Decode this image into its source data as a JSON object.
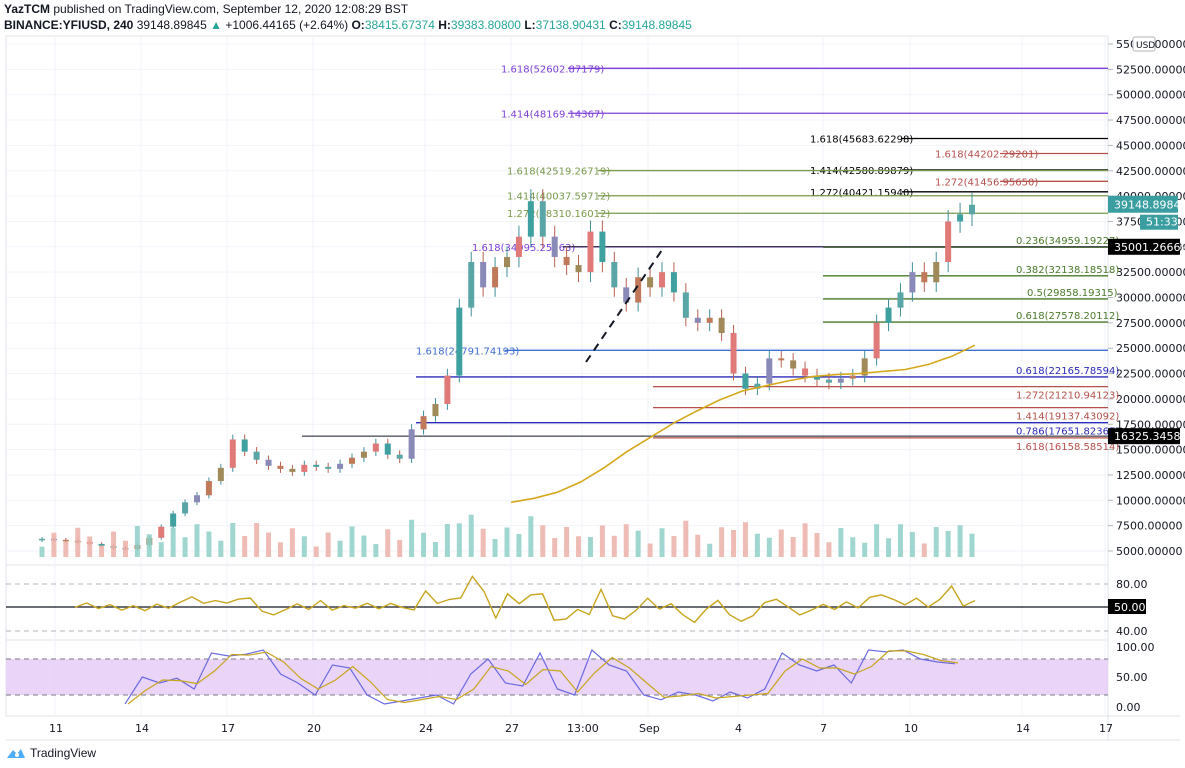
{
  "header": {
    "author": "YazTCM",
    "published": " published on TradingView.com, September 12, 2020 12:08:29 BST",
    "symbol": "BINANCE:YFIUSD, 240",
    "last": "39148.89845",
    "change": "+1006.44165 (+2.64%)",
    "o_label": "O:",
    "o": "38415.67374",
    "h_label": "H:",
    "h": "39383.80800",
    "l_label": "L:",
    "l": "37138.90431",
    "c_label": "C:",
    "c": "39148.89845"
  },
  "footer": {
    "brand": "TradingView"
  },
  "price_axis": {
    "currency": "USD",
    "ticks": [
      "55000.00000",
      "52500.00000",
      "50000.00000",
      "47500.00000",
      "45000.00000",
      "42500.00000",
      "40000.00000",
      "37500.00000",
      "35000.00000",
      "32500.00000",
      "30000.00000",
      "27500.00000",
      "25000.00000",
      "22500.00000",
      "20000.00000",
      "17500.00000",
      "15000.00000",
      "12500.00000",
      "10000.00000",
      "7500.00000",
      "5000.00000"
    ],
    "last_price_tag": "39148.89845",
    "countdown_tag": "51:33",
    "hline_tag_1": "35001.26669",
    "hline_tag_2": "16325.34585"
  },
  "rsi_axis": {
    "ticks": [
      "80.00",
      "40.00"
    ],
    "mid_tag": "50.00"
  },
  "stoch_axis": {
    "ticks": [
      "100.00",
      "50.00",
      "0.00"
    ]
  },
  "time_axis": {
    "ticks": [
      "11",
      "14",
      "17",
      "20",
      "24",
      "27",
      "13:00",
      "Sep",
      "4",
      "7",
      "10",
      "14",
      "17"
    ]
  },
  "chart_data": {
    "type": "candlestick",
    "title": "BINANCE:YFIUSD, 240",
    "ylabel": "USD",
    "ylim": [
      3500,
      56000
    ],
    "x_ticks": [
      "11",
      "14",
      "17",
      "20",
      "24",
      "27",
      "13:00",
      "Sep",
      "4",
      "7",
      "10",
      "14",
      "17"
    ],
    "fib_levels": [
      {
        "label": "1.618(52602.87179)",
        "value": 52602.87179,
        "color": "#7e3fd8"
      },
      {
        "label": "1.414(48169.14367)",
        "value": 48169.14367,
        "color": "#7e3fd8"
      },
      {
        "label": "1.618(45683.62298)",
        "value": 45683.62298,
        "color": "#000000"
      },
      {
        "label": "1.618(44202.29201)",
        "value": 44202.29201,
        "color": "#b5504a"
      },
      {
        "label": "1.414(42580.89879)",
        "value": 42580.89879,
        "color": "#000000"
      },
      {
        "label": "1.618(42519.26719)",
        "value": 42519.26719,
        "color": "#7a9a4a"
      },
      {
        "label": "1.272(41456.95650)",
        "value": 41456.9565,
        "color": "#b5504a"
      },
      {
        "label": "1.272(40421.15940)",
        "value": 40421.1594,
        "color": "#000000"
      },
      {
        "label": "1.414(40037.59712)",
        "value": 40037.59712,
        "color": "#7a9a4a"
      },
      {
        "label": "1.272(38310.16012)",
        "value": 38310.16012,
        "color": "#7a9a4a"
      },
      {
        "label": "1.618(34995.25163)",
        "value": 34995.25163,
        "color": "#7e3fd8"
      },
      {
        "label": "0.236(34959.19227)",
        "value": 34959.19227,
        "color": "#4a7a2a"
      },
      {
        "label": "0.382(32138.18518)",
        "value": 32138.18518,
        "color": "#4a7a2a"
      },
      {
        "label": "0.5(29858.19315)",
        "value": 29858.19315,
        "color": "#4a7a2a"
      },
      {
        "label": "0.618(27578.20112)",
        "value": 27578.20112,
        "color": "#4a7a2a"
      },
      {
        "label": "1.618(24791.74193)",
        "value": 24791.74193,
        "color": "#3d6fd0"
      },
      {
        "label": "0.618(22165.78594)",
        "value": 22165.78594,
        "color": "#2a2ab8"
      },
      {
        "label": "1.272(21210.94123)",
        "value": 21210.94123,
        "color": "#b5504a"
      },
      {
        "label": "1.414(19137.43092)",
        "value": 19137.43092,
        "color": "#b5504a"
      },
      {
        "label": "0.786(17651.82367)",
        "value": 17651.82367,
        "color": "#2a2ab8"
      },
      {
        "label": "1.618(16158.58514)",
        "value": 16158.58514,
        "color": "#b5504a"
      }
    ],
    "horizontal_lines": [
      35001.26669,
      16325.34585
    ],
    "close_series": [
      6200,
      6100,
      6000,
      5900,
      5700,
      5500,
      5300,
      5200,
      5600,
      6300,
      7400,
      8700,
      9800,
      10500,
      11900,
      13200,
      16000,
      14800,
      14000,
      13400,
      13100,
      12800,
      13500,
      13300,
      13100,
      13600,
      14200,
      14800,
      15600,
      14500,
      14100,
      17000,
      18300,
      19500,
      22300,
      29000,
      33500,
      31000,
      33000,
      34000,
      36000,
      39500,
      36000,
      34000,
      33200,
      32500,
      36500,
      33500,
      31000,
      29500,
      32000,
      31000,
      32500,
      30500,
      28000,
      27500,
      28000,
      26500,
      22500,
      21000,
      21500,
      24000,
      23800,
      23000,
      22300,
      21900,
      21600,
      22000,
      22300,
      24000,
      27500,
      29000,
      30500,
      32500,
      31500,
      33500,
      37500,
      38200,
      39148
    ],
    "ma_series": {
      "name": "MA",
      "color": "#d4a81a",
      "start_index": 24,
      "values": [
        9800,
        10200,
        10800,
        11800,
        13200,
        14800,
        16200,
        17600,
        18800,
        19900,
        20800,
        21300,
        21800,
        22200,
        22400,
        22500,
        22700,
        22900,
        23400,
        24200,
        25300
      ]
    },
    "rsi": {
      "levels": [
        80,
        50,
        40
      ],
      "color": "#c8a51e"
    },
    "stoch_rsi": {
      "levels": [
        80,
        20
      ],
      "k_color": "#6a6ae0",
      "d_color": "#c8a51e",
      "band_color": "#e6ccf7"
    },
    "last_price": 39148.89845
  }
}
